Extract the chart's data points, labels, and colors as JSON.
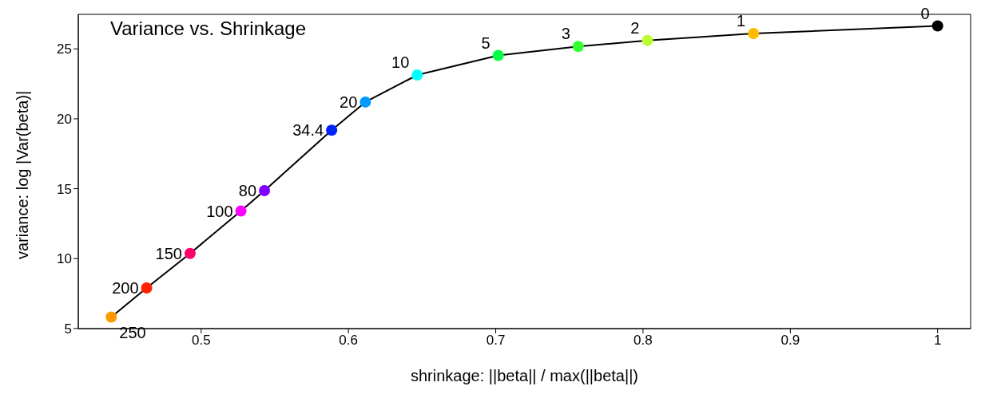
{
  "chart_data": {
    "type": "line",
    "title": "Variance vs. Shrinkage",
    "xlabel": "shrinkage: ||beta|| / max(||beta||)",
    "ylabel": "variance: log |Var(beta)|",
    "x": [
      0.439,
      0.463,
      0.4925,
      0.527,
      0.543,
      0.5886,
      0.6115,
      0.6467,
      0.7017,
      0.756,
      0.803,
      0.875,
      1.0
    ],
    "series": [
      {
        "color": "#000000",
        "colors": [
          "#ff9900",
          "#ff2200",
          "#ff0066",
          "#ff00ff",
          "#8000ff",
          "#0022ff",
          "#0099ff",
          "#00ffff",
          "#00ff44",
          "#33ff33",
          "#bbff33",
          "#ffbb00",
          "#000000"
        ],
        "values": [
          5.82,
          7.9,
          10.37,
          13.4,
          14.86,
          19.18,
          21.2,
          23.13,
          24.53,
          25.17,
          25.6,
          26.1,
          26.64
        ]
      }
    ],
    "annotations": [
      {
        "text": "250",
        "x": 0.439,
        "y": 5.82
      },
      {
        "text": "200",
        "x": 0.463,
        "y": 7.9
      },
      {
        "text": "150",
        "x": 0.4925,
        "y": 10.37
      },
      {
        "text": "100",
        "x": 0.527,
        "y": 13.4
      },
      {
        "text": "80",
        "x": 0.543,
        "y": 14.86
      },
      {
        "text": "34.4",
        "x": 0.5886,
        "y": 19.18
      },
      {
        "text": "20",
        "x": 0.6115,
        "y": 21.2
      },
      {
        "text": "10",
        "x": 0.6467,
        "y": 23.13
      },
      {
        "text": "5",
        "x": 0.7017,
        "y": 24.53
      },
      {
        "text": "3",
        "x": 0.756,
        "y": 25.17
      },
      {
        "text": "2",
        "x": 0.803,
        "y": 25.6
      },
      {
        "text": "1",
        "x": 0.875,
        "y": 26.1
      },
      {
        "text": "0",
        "x": 1.0,
        "y": 26.64
      }
    ],
    "xlim": [
      0.4166,
      1.0224
    ],
    "xticks": [
      0.5,
      0.6,
      0.7,
      0.8,
      0.9,
      1.0
    ],
    "ylim": [
      4.99,
      27.47
    ],
    "yticks": [
      5,
      10,
      15,
      20,
      25
    ],
    "grid": false,
    "legend": false,
    "marker": "circle",
    "line_style": "solid"
  }
}
